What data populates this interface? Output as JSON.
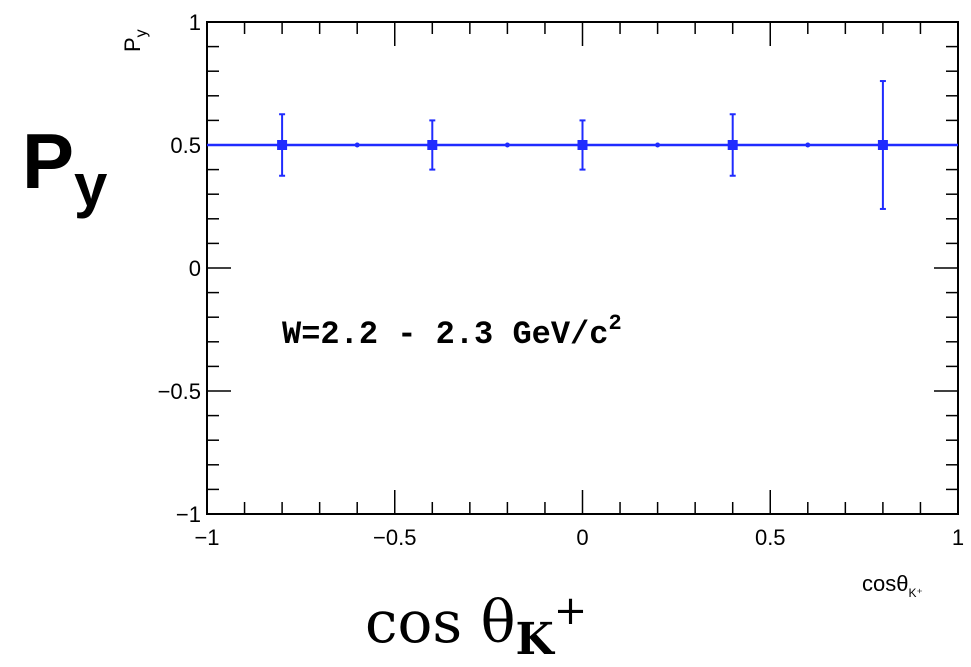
{
  "chart_data": {
    "type": "scatter",
    "title": "",
    "xlabel": "cosθ",
    "xlabel_sub": "K⁺",
    "ylabel": "P",
    "ylabel_sub": "y",
    "big_ylabel": "P",
    "big_ylabel_sub": "y",
    "big_xlabel": "cos θ",
    "big_xlabel_sub": "K",
    "big_xlabel_sup": "+",
    "annotation": "W=2.2 - 2.3 GeV/c",
    "annotation_sup": "2",
    "xlim": [
      -1,
      1
    ],
    "ylim": [
      -1,
      1
    ],
    "x_ticks": [
      {
        "value": -1,
        "label": "−1"
      },
      {
        "value": -0.5,
        "label": "−0.5"
      },
      {
        "value": 0,
        "label": "0"
      },
      {
        "value": 0.5,
        "label": "0.5"
      },
      {
        "value": 1,
        "label": "1"
      }
    ],
    "y_ticks": [
      {
        "value": -1,
        "label": "−1"
      },
      {
        "value": -0.5,
        "label": "−0.5"
      },
      {
        "value": 0,
        "label": "0"
      },
      {
        "value": 0.5,
        "label": "0.5"
      },
      {
        "value": 1,
        "label": "1"
      }
    ],
    "series": [
      {
        "color": "#1f2bff",
        "points": [
          {
            "x": -0.8,
            "y": 0.5,
            "err_low": 0.125,
            "err_high": 0.125
          },
          {
            "x": -0.4,
            "y": 0.5,
            "err_low": 0.1,
            "err_high": 0.1
          },
          {
            "x": 0.0,
            "y": 0.5,
            "err_low": 0.1,
            "err_high": 0.1
          },
          {
            "x": 0.4,
            "y": 0.5,
            "err_low": 0.125,
            "err_high": 0.125
          },
          {
            "x": 0.8,
            "y": 0.5,
            "err_low": 0.26,
            "err_high": 0.26
          }
        ],
        "line": [
          {
            "x": -1.0,
            "y": 0.5
          },
          {
            "x": 1.0,
            "y": 0.5
          }
        ],
        "line_markers_x": [
          -0.6,
          -0.2,
          0.2,
          0.6
        ]
      }
    ],
    "grid": false,
    "legend": "none"
  }
}
